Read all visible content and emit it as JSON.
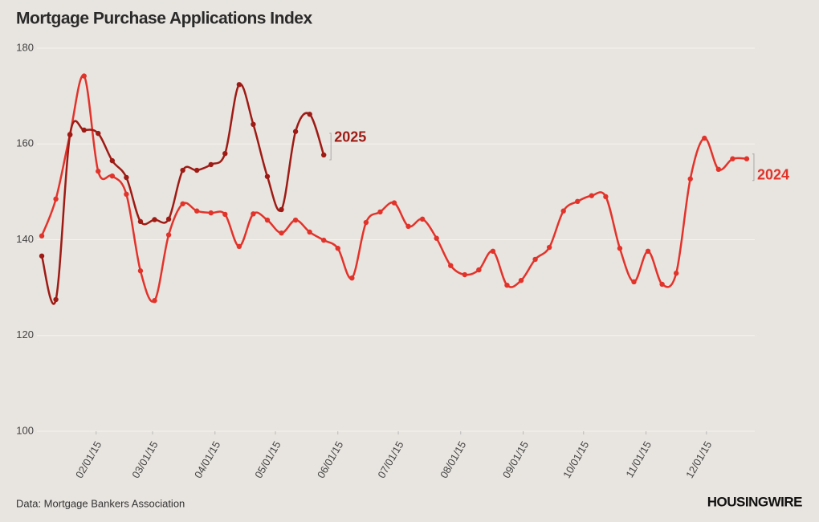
{
  "chart_data": {
    "type": "line",
    "title": "Mortgage Purchase Applications Index",
    "source": "Data: Mortgage Bankers Association",
    "brand": "HOUSINGWIRE",
    "x": [
      "01/05/15",
      "01/12/15",
      "01/19/15",
      "01/26/15",
      "02/02/15",
      "02/09/15",
      "02/16/15",
      "02/23/15",
      "03/02/15",
      "03/09/15",
      "03/16/15",
      "03/23/15",
      "03/30/15",
      "04/06/15",
      "04/13/15",
      "04/20/15",
      "04/27/15",
      "05/04/15",
      "05/11/15",
      "05/18/15",
      "05/25/15",
      "06/01/15",
      "06/08/15",
      "06/15/15",
      "06/22/15",
      "06/29/15",
      "07/06/15",
      "07/13/15",
      "07/20/15",
      "07/27/15",
      "08/03/15",
      "08/10/15",
      "08/17/15",
      "08/24/15",
      "08/31/15",
      "09/07/15",
      "09/14/15",
      "09/21/15",
      "09/28/15",
      "10/05/15",
      "10/12/15",
      "10/19/15",
      "10/26/15",
      "11/02/15",
      "11/09/15",
      "11/16/15",
      "11/23/15",
      "11/30/15",
      "12/07/15",
      "12/14/15",
      "12/21/15"
    ],
    "series": [
      {
        "name": "2024",
        "color": "#e2332b",
        "values": [
          140.8,
          148.5,
          162,
          174.2,
          154.3,
          153.3,
          149.5,
          133.5,
          127.3,
          141,
          147.5,
          146,
          145.6,
          145.3,
          138.6,
          145.4,
          144.1,
          141.4,
          144.1,
          141.6,
          139.9,
          138.2,
          132,
          143.6,
          145.8,
          147.7,
          142.8,
          144.3,
          140.3,
          134.6,
          132.7,
          133.7,
          137.6,
          130.5,
          131.5,
          135.9,
          138.4,
          146,
          148,
          149.2,
          149,
          138.2,
          131.2,
          137.6,
          130.7,
          133,
          152.7,
          161.2,
          154.7,
          156.9,
          156.9
        ]
      },
      {
        "name": "2025",
        "color": "#9e1b15",
        "values": [
          136.6,
          127.5,
          161.9,
          162.9,
          162.2,
          156.5,
          153,
          143.8,
          144.2,
          144.3,
          154.5,
          154.5,
          155.7,
          158,
          172.4,
          164.1,
          153.2,
          146.3,
          162.6,
          166.2,
          157.7,
          null,
          null,
          null,
          null,
          null,
          null,
          null,
          null,
          null,
          null,
          null,
          null,
          null,
          null,
          null,
          null,
          null,
          null,
          null,
          null,
          null,
          null,
          null,
          null,
          null,
          null,
          null,
          null,
          null,
          null
        ]
      }
    ],
    "xlim": [
      "01/01/15",
      "12/25/15"
    ],
    "xticks": [
      "02/01/15",
      "03/01/15",
      "04/01/15",
      "05/01/15",
      "06/01/15",
      "07/01/15",
      "08/01/15",
      "09/01/15",
      "10/01/15",
      "11/01/15",
      "12/01/15"
    ],
    "ylim": [
      100,
      180
    ],
    "yticks": [
      100,
      120,
      140,
      160,
      180
    ],
    "grid": true
  }
}
